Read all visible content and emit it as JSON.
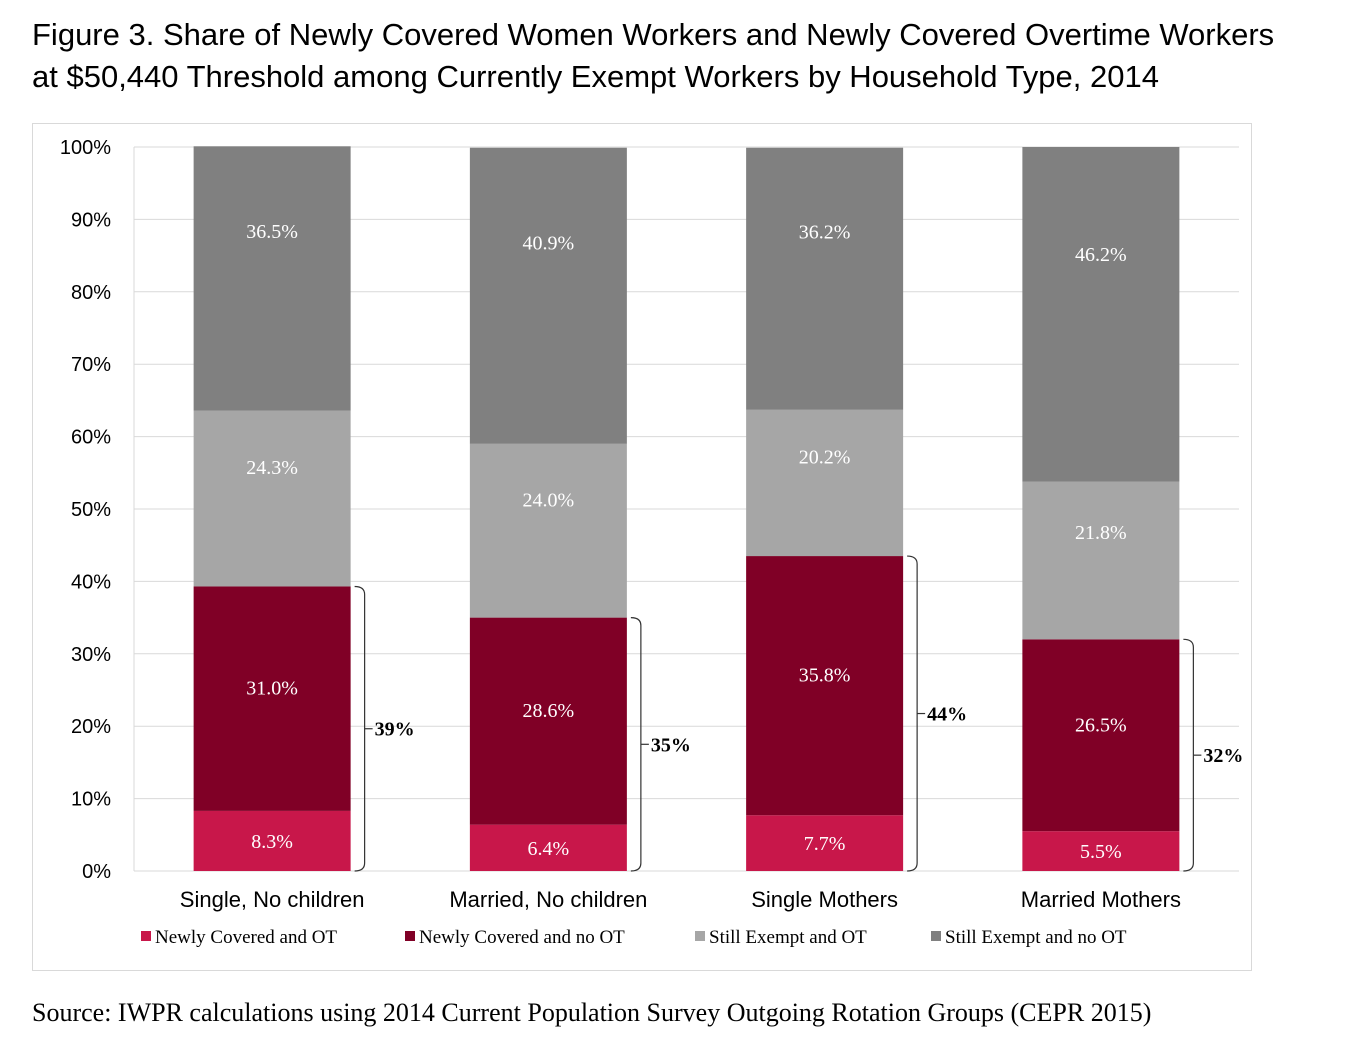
{
  "title_line1": "Figure 3. Share of Newly Covered Women Workers and Newly Covered Overtime Workers",
  "title_line2": "at $50,440 Threshold among Currently Exempt Workers by Household Type, 2014",
  "source": "Source: IWPR calculations using 2014 Current Population Survey Outgoing Rotation Groups (CEPR 2015)",
  "chart_data": {
    "type": "bar",
    "stacked": true,
    "categories": [
      "Single, No children",
      "Married, No children",
      "Single Mothers",
      "Married Mothers"
    ],
    "series": [
      {
        "name": "Newly Covered and OT",
        "color": "#c8174a",
        "values": [
          8.3,
          6.4,
          7.7,
          5.5
        ],
        "labels": [
          "8.3%",
          "6.4%",
          "7.7%",
          "5.5%"
        ]
      },
      {
        "name": "Newly Covered and no OT",
        "color": "#800026",
        "values": [
          31.0,
          28.6,
          35.8,
          26.5
        ],
        "labels": [
          "31.0%",
          "28.6%",
          "35.8%",
          "26.5%"
        ]
      },
      {
        "name": "Still Exempt and OT",
        "color": "#a6a6a6",
        "values": [
          24.3,
          24.0,
          20.2,
          21.8
        ],
        "labels": [
          "24.3%",
          "24.0%",
          "20.2%",
          "21.8%"
        ]
      },
      {
        "name": "Still Exempt and no OT",
        "color": "#808080",
        "values": [
          36.5,
          40.9,
          36.2,
          46.2
        ],
        "labels": [
          "36.5%",
          "40.9%",
          "36.2%",
          "46.2%"
        ]
      }
    ],
    "bracket_totals": [
      "39%",
      "35%",
      "44%",
      "32%"
    ],
    "ylim": [
      0,
      100
    ],
    "yticks": [
      0,
      10,
      20,
      30,
      40,
      50,
      60,
      70,
      80,
      90,
      100
    ],
    "ytick_labels": [
      "0%",
      "10%",
      "20%",
      "30%",
      "40%",
      "50%",
      "60%",
      "70%",
      "80%",
      "90%",
      "100%"
    ],
    "grid": true,
    "legend_position": "bottom",
    "xlabel": "",
    "ylabel": ""
  }
}
